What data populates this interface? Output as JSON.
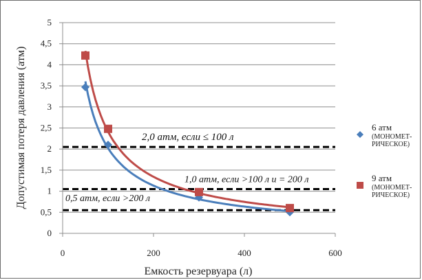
{
  "chart_data": {
    "type": "scatter",
    "xlabel": "Емкость резервуара (л)",
    "ylabel": "Допустимая потеря давления (атм)",
    "xlim": [
      0,
      600
    ],
    "ylim": [
      0,
      5
    ],
    "x_ticks": [
      "0",
      "200",
      "400",
      "600"
    ],
    "y_ticks": [
      "0",
      "0,5",
      "1",
      "1,5",
      "2",
      "2,5",
      "3",
      "3,5",
      "4",
      "4,5",
      "5"
    ],
    "grid": "horizontal",
    "legend_position": "right",
    "series": [
      {
        "name": "6 атм",
        "name_sub": [
          "(МОНОМЕТ-",
          "РИЧЕСКОЕ)"
        ],
        "color": "#4a7ebb",
        "marker": "diamond",
        "x": [
          50,
          100,
          300,
          500
        ],
        "y": [
          3.47,
          2.1,
          0.85,
          0.5
        ],
        "trend": "power"
      },
      {
        "name": "9 атм",
        "name_sub": [
          "(МОНОМЕТ-",
          "РИЧЕСКОЕ)"
        ],
        "color": "#be4b48",
        "marker": "square",
        "x": [
          50,
          100,
          300,
          500
        ],
        "y": [
          4.22,
          2.48,
          0.98,
          0.6
        ],
        "trend": "power"
      }
    ],
    "reference_lines": [
      {
        "y": 2.05,
        "label": "2,0 атм, если ≤ 100 л"
      },
      {
        "y": 1.05,
        "label": "1,0 атм, если >100 л и = 200 л"
      },
      {
        "y": 0.55,
        "label": "0,5 атм, если >200 л"
      }
    ]
  }
}
